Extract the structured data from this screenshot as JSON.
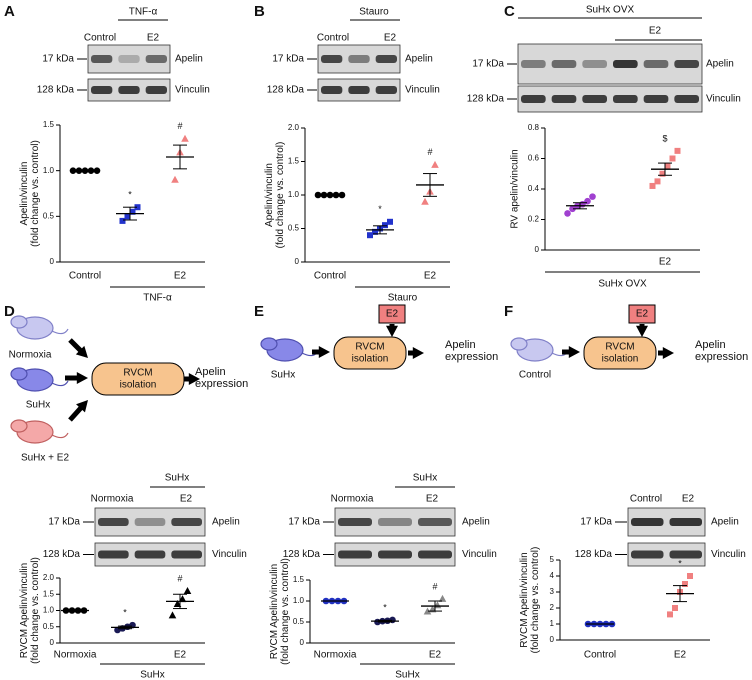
{
  "panels": [
    "A",
    "B",
    "C",
    "D",
    "E",
    "F"
  ],
  "blots": [
    {
      "header": "TNF-α",
      "lanes": [
        "Control",
        "E2"
      ],
      "markers": [
        "17 kDa",
        "128 kDa"
      ],
      "bands": [
        "Apelin",
        "Vinculin"
      ]
    },
    {
      "header": "Stauro",
      "lanes": [
        "Control",
        "E2"
      ],
      "markers": [
        "17 kDa",
        "128 kDa"
      ],
      "bands": [
        "Apelin",
        "Vinculin"
      ]
    },
    {
      "header": "SuHx OVX",
      "subheader": "E2",
      "markers": [
        "17 kDa",
        "128 kDa"
      ],
      "bands": [
        "Apelin",
        "Vinculin"
      ]
    },
    {
      "header": "SuHx",
      "lanes": [
        "Normoxia",
        "E2"
      ],
      "markers": [
        "17 kDa",
        "128 kDa"
      ],
      "bands": [
        "Apelin",
        "Vinculin"
      ]
    },
    {
      "header": "SuHx",
      "lanes": [
        "Normoxia",
        "E2"
      ],
      "markers": [
        "17 kDa",
        "128 kDa"
      ],
      "bands": [
        "Apelin",
        "Vinculin"
      ]
    },
    {
      "lanes": [
        "Control",
        "E2"
      ],
      "markers": [
        "17 kDa",
        "128 kDa"
      ],
      "bands": [
        "Apelin",
        "Vinculin"
      ]
    }
  ],
  "diagrams": [
    {
      "subjects": [
        "Normoxia",
        "SuHx",
        "SuHx + E2"
      ],
      "process": [
        "RVCM",
        "isolation"
      ],
      "output": [
        "Apelin",
        "expression"
      ]
    },
    {
      "subjects": [
        "SuHx"
      ],
      "treatment": "E2",
      "process": [
        "RVCM",
        "isolation"
      ],
      "output": [
        "Apelin",
        "expression"
      ]
    },
    {
      "subjects": [
        "Control"
      ],
      "treatment": "E2",
      "process": [
        "RVCM",
        "isolation"
      ],
      "output": [
        "Apelin",
        "expression"
      ]
    }
  ],
  "chart_data": [
    {
      "type": "dot",
      "ylabel": [
        "Apelin/vinculin",
        "(fold change vs. control)"
      ],
      "ylim": [
        0,
        1.5
      ],
      "yticks": [
        0,
        0.5,
        {
          "value": 1,
          "label": "1.0"
        },
        1.5
      ],
      "group_label": "TNF-α",
      "annotations": [
        null,
        "*",
        "#"
      ],
      "groups": [
        {
          "name": "Control",
          "color": "#000000",
          "marker": "circle",
          "values": [
            1,
            1,
            1,
            1,
            1
          ],
          "mean": 1,
          "error": 0
        },
        {
          "name": null,
          "color": "#2233cc",
          "marker": "square",
          "values": [
            0.45,
            0.5,
            0.55,
            0.6
          ],
          "mean": 0.53,
          "error": 0.07
        },
        {
          "name": "E2",
          "color": "#f08080",
          "marker": "triangle",
          "values": [
            0.9,
            1.2,
            1.35
          ],
          "mean": 1.15,
          "error": 0.13
        }
      ]
    },
    {
      "type": "dot",
      "ylabel": [
        "Apelin/vinculin",
        "(fold change vs. control)"
      ],
      "ylim": [
        0,
        2
      ],
      "yticks": [
        0,
        0.5,
        {
          "value": 1,
          "label": "1.0"
        },
        1.5,
        {
          "value": 2,
          "label": "2.0"
        }
      ],
      "group_label": "Stauro",
      "annotations": [
        null,
        "*",
        "#"
      ],
      "groups": [
        {
          "name": "Control",
          "color": "#000000",
          "marker": "circle",
          "values": [
            1,
            1,
            1,
            1,
            1
          ],
          "mean": 1,
          "error": 0
        },
        {
          "name": null,
          "color": "#2233cc",
          "marker": "square",
          "values": [
            0.4,
            0.45,
            0.5,
            0.55,
            0.6
          ],
          "mean": 0.48,
          "error": 0.06
        },
        {
          "name": "E2",
          "color": "#f08080",
          "marker": "triangle",
          "values": [
            0.9,
            1.05,
            1.45
          ],
          "mean": 1.15,
          "error": 0.17
        }
      ]
    },
    {
      "type": "dot",
      "ylabel": [
        "RV apelin/vinculin"
      ],
      "ylim": [
        0,
        0.8
      ],
      "yticks": [
        0,
        0.2,
        0.4,
        0.6,
        0.8
      ],
      "group_label": "SuHx OVX",
      "annotations": [
        null,
        "$"
      ],
      "groups": [
        {
          "name": null,
          "color": "#a040d0",
          "marker": "circle",
          "values": [
            0.24,
            0.27,
            0.29,
            0.3,
            0.32,
            0.35
          ],
          "mean": 0.29,
          "error": 0.02
        },
        {
          "name": "E2",
          "color": "#f08080",
          "marker": "square",
          "values": [
            0.42,
            0.45,
            0.5,
            0.55,
            0.6,
            0.65
          ],
          "mean": 0.53,
          "error": 0.04
        }
      ]
    },
    {
      "type": "dot",
      "ylabel": [
        "RVCM Apelin/vinculin",
        "(fold change vs. control)"
      ],
      "ylim": [
        0,
        2
      ],
      "yticks": [
        0,
        0.5,
        {
          "value": 1,
          "label": "1.0"
        },
        1.5,
        {
          "value": 2,
          "label": "2.0"
        }
      ],
      "group_label": "SuHx",
      "annotations": [
        null,
        "*",
        "#"
      ],
      "groups": [
        {
          "name": "Normoxia",
          "color": "#000000",
          "marker": "circle",
          "values": [
            1,
            1,
            1,
            1
          ],
          "mean": 1,
          "error": 0
        },
        {
          "name": null,
          "color": "#1a1a55",
          "marker": "circle",
          "values": [
            0.4,
            0.45,
            0.5,
            0.55
          ],
          "mean": 0.48,
          "error": 0.04
        },
        {
          "name": "E2",
          "color": "#000000",
          "marker": "triangle",
          "values": [
            0.85,
            1.2,
            1.35,
            1.6
          ],
          "mean": 1.28,
          "error": 0.22
        }
      ]
    },
    {
      "type": "dot",
      "ylabel": [
        "RVCM Apelin/vinculin",
        "(fold change vs. control)"
      ],
      "ylim": [
        0,
        1.5
      ],
      "yticks": [
        0,
        0.5,
        {
          "value": 1,
          "label": "1.0"
        },
        1.5
      ],
      "group_label": "SuHx",
      "annotations": [
        null,
        "*",
        "#"
      ],
      "groups": [
        {
          "name": "Normoxia",
          "color": "#2030c0",
          "marker": "circle",
          "values": [
            1,
            1,
            1,
            1
          ],
          "mean": 1,
          "error": 0
        },
        {
          "name": null,
          "color": "#1a1a55",
          "marker": "circle",
          "values": [
            0.5,
            0.52,
            0.53,
            0.55
          ],
          "mean": 0.52,
          "error": 0.02
        },
        {
          "name": "E2",
          "color": "#888888",
          "marker": "triangle",
          "values": [
            0.75,
            0.8,
            0.9,
            1.05
          ],
          "mean": 0.88,
          "error": 0.12
        }
      ]
    },
    {
      "type": "dot",
      "ylabel": [
        "RVCM Apelin/vinculin",
        "(fold change vs. control)"
      ],
      "ylim": [
        0,
        5
      ],
      "yticks": [
        0,
        1,
        2,
        3,
        4,
        5
      ],
      "annotations": [
        null,
        "*"
      ],
      "groups": [
        {
          "name": "Control",
          "color": "#2030c0",
          "marker": "circle",
          "values": [
            1,
            1,
            1,
            1,
            1
          ],
          "mean": 1,
          "error": 0
        },
        {
          "name": "E2",
          "color": "#f08080",
          "marker": "square",
          "values": [
            1.6,
            2,
            3,
            3.5,
            4
          ],
          "mean": 2.9,
          "error": 0.5
        }
      ]
    }
  ]
}
